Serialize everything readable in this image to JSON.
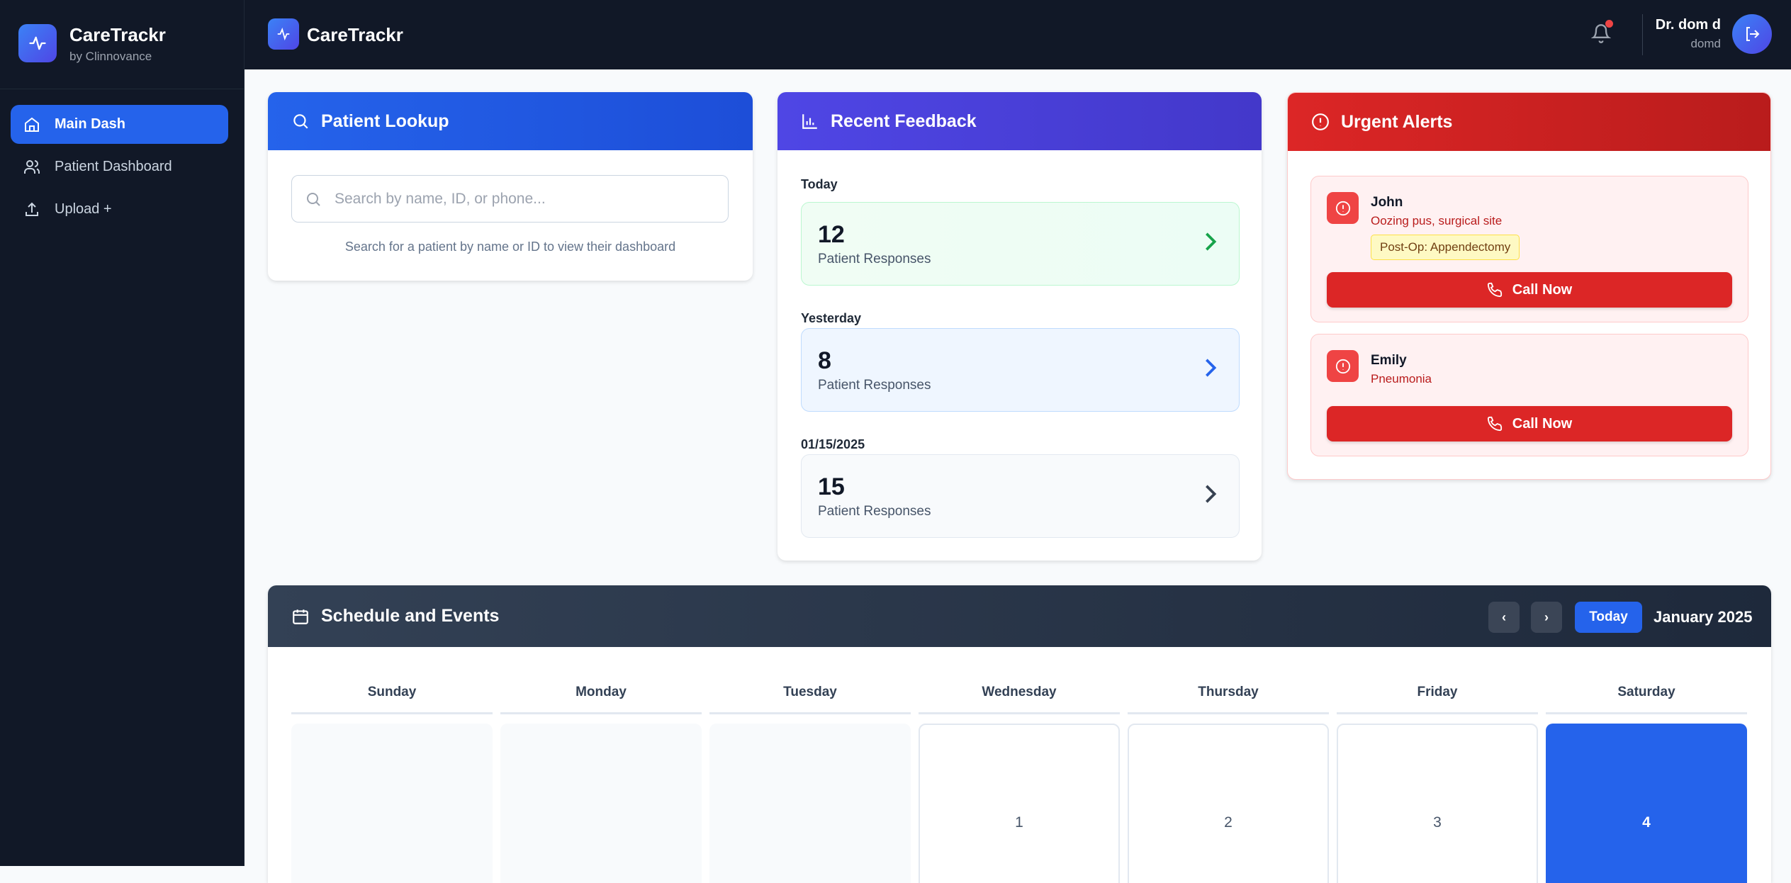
{
  "app": {
    "name": "CareTrackr",
    "subtitle": "by Clinnovance"
  },
  "sidebar": {
    "items": [
      {
        "label": "Main Dash",
        "icon": "home-icon",
        "active": true
      },
      {
        "label": "Patient Dashboard",
        "icon": "users-icon"
      },
      {
        "label": "Upload +",
        "icon": "upload-icon"
      }
    ]
  },
  "topbar": {
    "title": "CareTrackr",
    "user_name": "Dr. dom d",
    "username": "domd",
    "notification_dot": true
  },
  "lookup": {
    "title": "Patient Lookup",
    "placeholder": "Search by name, ID, or phone...",
    "helper": "Search for a patient by name or ID to view their dashboard"
  },
  "feedback": {
    "title": "Recent Feedback",
    "groups": [
      {
        "label": "Today",
        "count": "12",
        "text": "Patient Responses",
        "color": "#16a34a"
      },
      {
        "label": "Yesterday",
        "count": "8",
        "text": "Patient Responses",
        "color": "#2563eb"
      },
      {
        "label": "01/15/2025",
        "count": "15",
        "text": "Patient Responses",
        "color": "#374151"
      }
    ]
  },
  "alerts": {
    "title": "Urgent Alerts",
    "items": [
      {
        "name": "John",
        "description": "Oozing pus, surgical site",
        "badge": "Post-Op: Appendectomy",
        "action": "Call Now"
      },
      {
        "name": "Emily",
        "description": "Pneumonia",
        "action": "Call Now"
      }
    ]
  },
  "calendar": {
    "title": "Schedule and Events",
    "prev": "‹",
    "next": "›",
    "today_label": "Today",
    "month": "January 2025",
    "weekdays": [
      "Sunday",
      "Monday",
      "Tuesday",
      "Wednesday",
      "Thursday",
      "Friday",
      "Saturday"
    ],
    "first_week": [
      "",
      "",
      "",
      "1",
      "2",
      "3",
      "4"
    ],
    "selected_day": "4"
  }
}
